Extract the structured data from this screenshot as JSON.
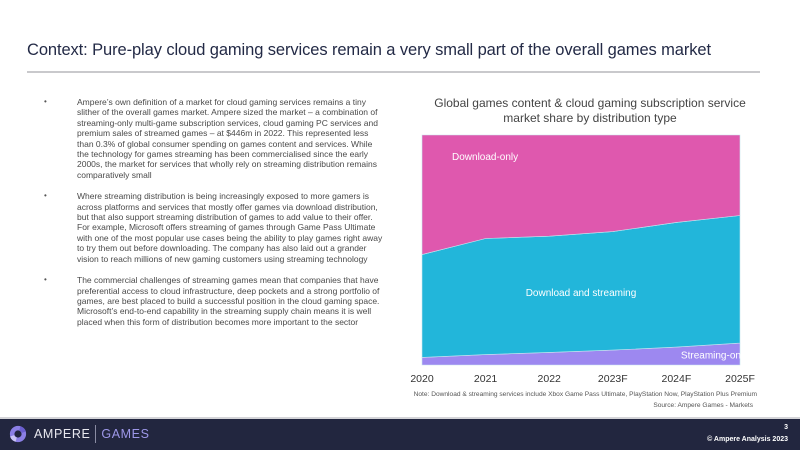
{
  "slide": {
    "title": "Context: Pure-play cloud gaming services remain a very small part of the overall games market",
    "bullet_glyph": "•",
    "bullets": [
      "Ampere’s own definition of a market for cloud gaming services remains a tiny slither of the overall games market. Ampere sized the market – a combination of streaming-only multi-game subscription services, cloud gaming PC services and premium sales of streamed games – at $446m in 2022. This represented less than 0.3% of global consumer spending on games content and services. While the technology for games streaming has been commercialised since the early 2000s, the market for services that wholly rely on streaming distribution remains comparatively small",
      "Where streaming distribution is being increasingly exposed to more gamers is across platforms and services that mostly offer games via download distribution, but that also support streaming distribution of games to add value to their offer. For example, Microsoft offers streaming of games through Game Pass Ultimate with one of the most popular use cases being the ability to play games right away to try them out before downloading. The company has also laid out a grander vision to reach millions of new gaming customers using streaming technology",
      "The commercial challenges of streaming games mean that companies that have preferential access to cloud infrastructure, deep pockets and a strong portfolio of games, are best placed to build a successful position in the cloud gaming space. Microsoft’s end-to-end capability in the streaming supply chain means it is well placed when this form of distribution becomes more important to the sector"
    ],
    "note": "Note: Download & streaming services include Xbox Game Pass Ultimate, PlayStation Now, PlayStation Plus Premium",
    "source": "Source: Ampere Games - Markets"
  },
  "footer": {
    "brand_primary": "AMPERE",
    "brand_secondary": "GAMES",
    "page_number": "3",
    "copyright": "© Ampere Analysis 2023",
    "logo_icon": "ring-logo-icon"
  },
  "chart_data": {
    "type": "area",
    "stacked": true,
    "normalized_percent": true,
    "title": "Global games content & cloud gaming subscription service market share by distribution type",
    "xlabel": "",
    "ylabel": "",
    "categories": [
      "2020",
      "2021",
      "2022",
      "2023F",
      "2024F",
      "2025F"
    ],
    "ylim": [
      0,
      100
    ],
    "grid": false,
    "legend": "inline-labels",
    "series": [
      {
        "name": "Streaming-only",
        "color": "#9d88f0",
        "values": [
          3.3,
          4.5,
          5.5,
          6.5,
          7.8,
          9.5
        ]
      },
      {
        "name": "Download and streaming",
        "color": "#22b6da",
        "values": [
          44.7,
          50.5,
          50.5,
          51.5,
          54.2,
          55.5
        ]
      },
      {
        "name": "Download-only",
        "color": "#df58ae",
        "values": [
          52.0,
          45.0,
          44.0,
          42.0,
          38.0,
          35.0
        ]
      }
    ]
  }
}
